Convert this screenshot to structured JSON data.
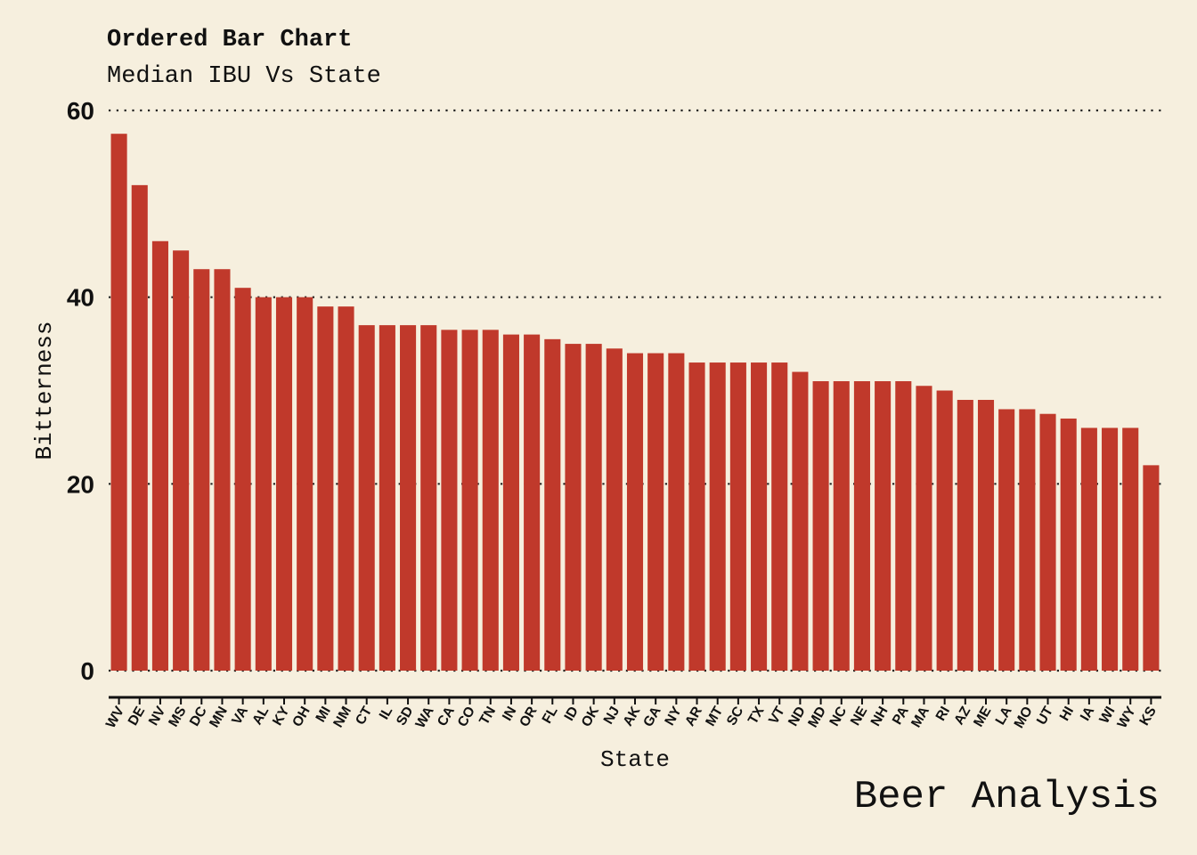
{
  "title": "Ordered Bar Chart",
  "subtitle": "Median IBU Vs State",
  "caption": "Beer Analysis",
  "colors": {
    "background": "#f6efde",
    "bar": "#c0392b",
    "text": "#111111"
  },
  "chart_data": {
    "type": "bar",
    "xlabel": "State",
    "ylabel": "Bitterness",
    "ylim": [
      0,
      60
    ],
    "yticks": [
      0,
      20,
      40,
      60
    ],
    "grid": "horizontal-dotted",
    "categories": [
      "WV",
      "DE",
      "NV",
      "MS",
      "DC",
      "MN",
      "VA",
      "AL",
      "KY",
      "OH",
      "MI",
      "NM",
      "CT",
      "IL",
      "SD",
      "WA",
      "CA",
      "CO",
      "TN",
      "IN",
      "OR",
      "FL",
      "ID",
      "OK",
      "NJ",
      "AK",
      "GA",
      "NY",
      "AR",
      "MT",
      "SC",
      "TX",
      "VT",
      "ND",
      "MD",
      "NC",
      "NE",
      "NH",
      "PA",
      "MA",
      "RI",
      "AZ",
      "ME",
      "LA",
      "MO",
      "UT",
      "HI",
      "IA",
      "WI",
      "WY",
      "KS"
    ],
    "values": [
      57.5,
      52,
      46,
      45,
      43,
      43,
      41,
      40,
      40,
      40,
      39,
      39,
      37,
      37,
      37,
      37,
      36.5,
      36.5,
      36.5,
      36,
      36,
      35.5,
      35,
      35,
      34.5,
      34,
      34,
      34,
      33,
      33,
      33,
      33,
      33,
      32,
      31,
      31,
      31,
      31,
      31,
      30.5,
      30,
      29,
      29,
      28,
      28,
      27.5,
      27,
      26,
      26,
      26,
      22
    ]
  }
}
